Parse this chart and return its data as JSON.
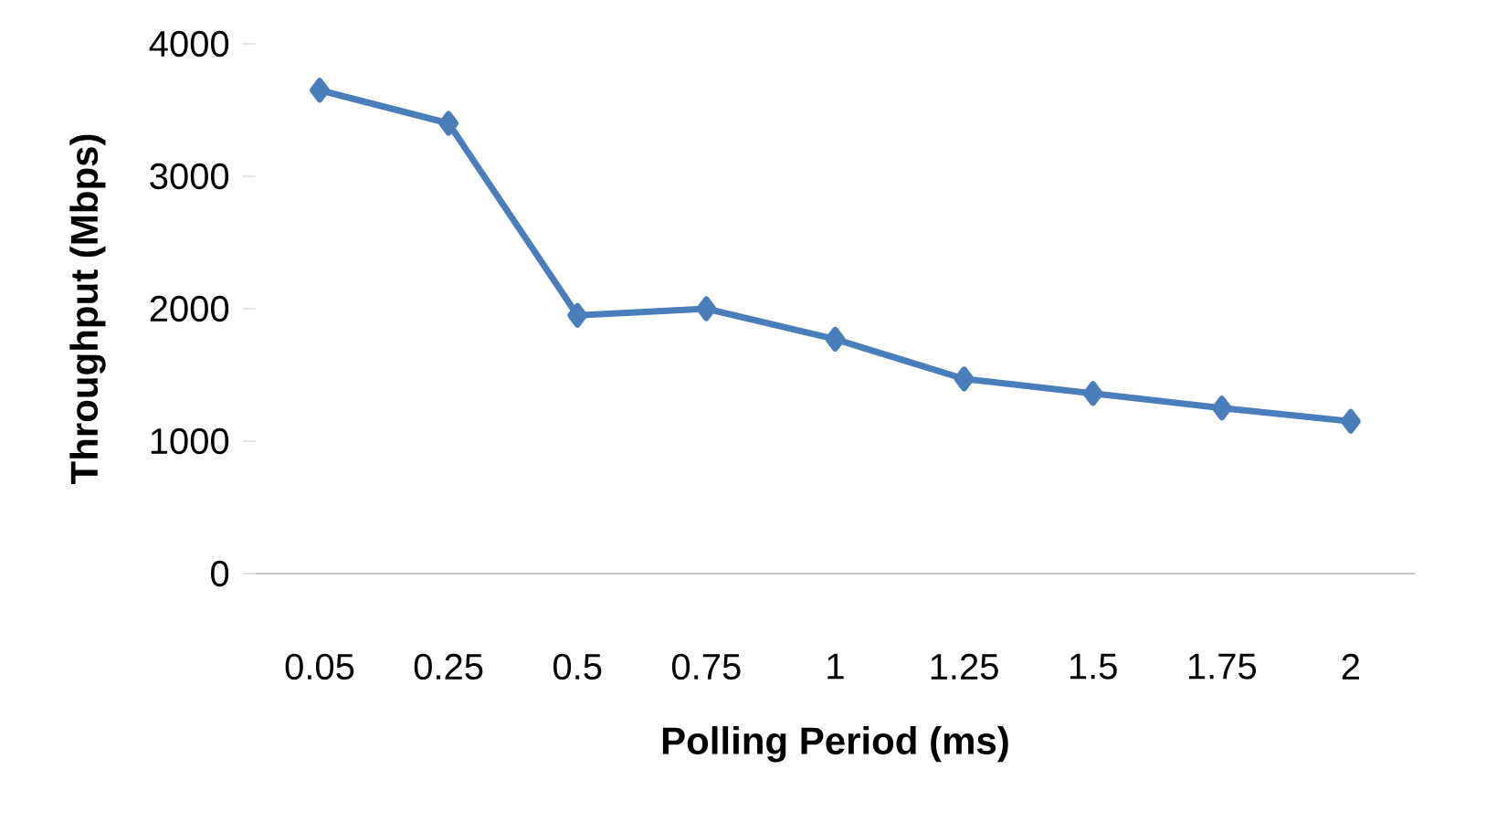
{
  "chart_data": {
    "type": "line",
    "xlabel": "Polling Period (ms)",
    "ylabel": "Throughput (Mbps)",
    "categories": [
      "0.05",
      "0.25",
      "0.5",
      "0.75",
      "1",
      "1.25",
      "1.5",
      "1.75",
      "2"
    ],
    "values": [
      3650,
      3400,
      1950,
      2000,
      1770,
      1470,
      1360,
      1250,
      1150
    ],
    "color": "#4a7ebb",
    "marker": "diamond",
    "line_style": "solid",
    "ylim": [
      0,
      4000
    ],
    "yticks": [
      0,
      1000,
      2000,
      3000,
      4000
    ]
  }
}
